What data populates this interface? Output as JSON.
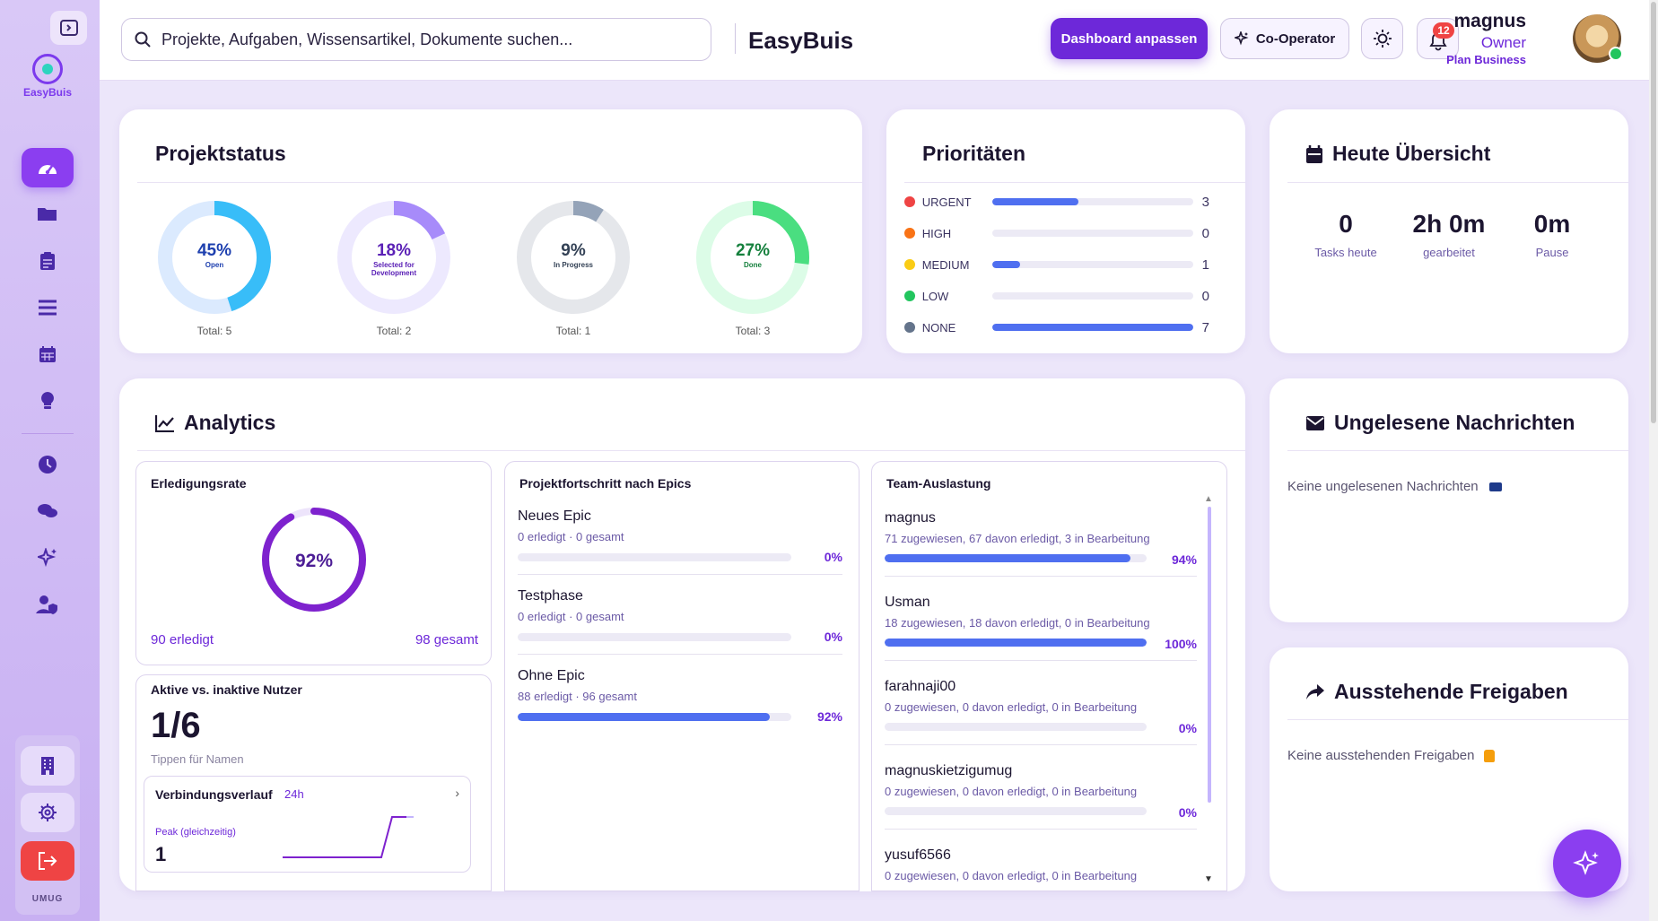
{
  "sidebar": {
    "brand": "EasyBuis",
    "workspace": "UMUG",
    "nav_icons": [
      "dashboard-icon",
      "folder-icon",
      "clipboard-icon",
      "list-icon",
      "calendar-icon",
      "lightbulb-icon",
      "clock-icon",
      "chat-icon",
      "sparkles-icon",
      "user-shield-icon"
    ],
    "bottom_icons": [
      "building-icon",
      "gear-icon",
      "logout-icon"
    ]
  },
  "header": {
    "search_placeholder": "Projekte, Aufgaben, Wissensartikel, Dokumente suchen...",
    "brand": "EasyBuis",
    "customize_label": "Dashboard anpassen",
    "cooperator_label": "Co-Operator",
    "notification_count": "12",
    "user": {
      "name": "magnus",
      "role": "Owner",
      "plan": "Plan Business"
    }
  },
  "project_status": {
    "title": "Projektstatus",
    "items": [
      {
        "pct": "45%",
        "pct_value": 45,
        "label": "Open",
        "total": "Total: 5",
        "color": "#38bdf8",
        "track": "#dbeafe",
        "text_color": "#1e40af"
      },
      {
        "pct": "18%",
        "pct_value": 18,
        "label": "Selected for Development",
        "total": "Total: 2",
        "color": "#a78bfa",
        "track": "#ede9fe",
        "text_color": "#5b21b6"
      },
      {
        "pct": "9%",
        "pct_value": 9,
        "label": "In Progress",
        "total": "Total: 1",
        "color": "#94a3b8",
        "track": "#e5e7eb",
        "text_color": "#334155"
      },
      {
        "pct": "27%",
        "pct_value": 27,
        "label": "Done",
        "total": "Total: 3",
        "color": "#4ade80",
        "track": "#dcfce7",
        "text_color": "#15803d"
      }
    ]
  },
  "priorities": {
    "title": "Prioritäten",
    "items": [
      {
        "label": "URGENT",
        "count": "3",
        "fraction": 0.43,
        "color": "#ef4444"
      },
      {
        "label": "HIGH",
        "count": "0",
        "fraction": 0,
        "color": "#f97316"
      },
      {
        "label": "MEDIUM",
        "count": "1",
        "fraction": 0.14,
        "color": "#facc15"
      },
      {
        "label": "LOW",
        "count": "0",
        "fraction": 0,
        "color": "#22c55e"
      },
      {
        "label": "NONE",
        "count": "7",
        "fraction": 1.0,
        "color": "#64748b"
      }
    ]
  },
  "today": {
    "title": "Heute Übersicht",
    "stats": [
      {
        "value": "0",
        "label": "Tasks heute"
      },
      {
        "value": "2h 0m",
        "label": "gearbeitet"
      },
      {
        "value": "0m",
        "label": "Pause"
      }
    ]
  },
  "analytics": {
    "title": "Analytics",
    "completion": {
      "title": "Erledigungsrate",
      "pct": "92%",
      "pct_value": 92,
      "done": "90 erledigt",
      "total": "98 gesamt"
    },
    "users": {
      "title": "Aktive vs. inaktive Nutzer",
      "value": "1/6",
      "hint": "Tippen für Namen",
      "history": {
        "title": "Verbindungsverlauf",
        "range": "24h",
        "peak_label": "Peak (gleichzeitig)",
        "peak_value": "1",
        "arrow": "›"
      }
    },
    "epics": {
      "title": "Projektfortschritt nach Epics",
      "items": [
        {
          "name": "Neues Epic",
          "meta": "0 erledigt · 0 gesamt",
          "pct": "0%",
          "fraction": 0
        },
        {
          "name": "Testphase",
          "meta": "0 erledigt · 0 gesamt",
          "pct": "0%",
          "fraction": 0
        },
        {
          "name": "Ohne Epic",
          "meta": "88 erledigt · 96 gesamt",
          "pct": "92%",
          "fraction": 0.92
        }
      ]
    },
    "team": {
      "title": "Team-Auslastung",
      "members": [
        {
          "name": "magnus",
          "meta": "71 zugewiesen, 67 davon erledigt, 3 in Bearbeitung",
          "pct": "94%",
          "fraction": 0.94
        },
        {
          "name": "Usman",
          "meta": "18 zugewiesen, 18 davon erledigt, 0 in Bearbeitung",
          "pct": "100%",
          "fraction": 1.0
        },
        {
          "name": "farahnaji00",
          "meta": "0 zugewiesen, 0 davon erledigt, 0 in Bearbeitung",
          "pct": "0%",
          "fraction": 0
        },
        {
          "name": "magnuskietzigumug",
          "meta": "0 zugewiesen, 0 davon erledigt, 0 in Bearbeitung",
          "pct": "0%",
          "fraction": 0
        },
        {
          "name": "yusuf6566",
          "meta": "0 zugewiesen, 0 davon erledigt, 0 in Bearbeitung",
          "pct": "",
          "fraction": 0
        }
      ]
    }
  },
  "messages": {
    "title": "Ungelesene Nachrichten",
    "empty": "Keine ungelesenen Nachrichten",
    "empty_icon": "mailbox-icon"
  },
  "approvals": {
    "title": "Ausstehende Freigaben",
    "empty": "Keine ausstehenden Freigaben",
    "empty_icon": "thumbs-up-icon"
  },
  "colors": {
    "accent": "#6d28d9",
    "bar": "#4f6ff0"
  }
}
